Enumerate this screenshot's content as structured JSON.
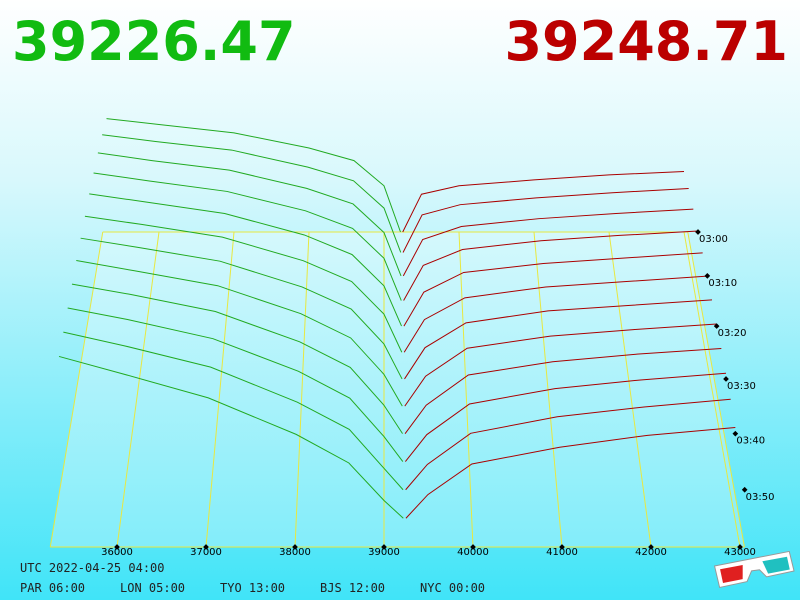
{
  "chart_data": {
    "type": "depth3d",
    "bid": 39226.47,
    "ask": 39248.71,
    "bid_color": "#11bb11",
    "ask_color": "#bb0000",
    "bid_line_color": "#22aa22",
    "ask_line_color": "#aa0000",
    "grid_color": "#e8e840",
    "xlim": [
      35250,
      43050
    ],
    "xticks": [
      36000,
      37000,
      38000,
      39000,
      40000,
      41000,
      42000,
      43000
    ],
    "tlim": [
      0,
      60
    ],
    "tticks": [
      {
        "value": 0,
        "label": "03:00"
      },
      {
        "value": 10,
        "label": "03:10"
      },
      {
        "value": 20,
        "label": "03:20"
      },
      {
        "value": 30,
        "label": "03:30"
      },
      {
        "value": 40,
        "label": "03:40"
      },
      {
        "value": 50,
        "label": "03:50"
      }
    ],
    "zlim": [
      0,
      200
    ],
    "bid_prices": [
      35300,
      36000,
      37000,
      38000,
      38600,
      39000,
      39220
    ],
    "ask_prices": [
      39250,
      39500,
      40000,
      41000,
      42000,
      43000
    ],
    "snapshots": [
      {
        "t": 0,
        "bids": [
          135,
          128,
          118,
          100,
          85,
          55,
          0
        ],
        "asks": [
          0,
          45,
          55,
          62,
          68,
          72
        ]
      },
      {
        "t": 5,
        "bids": [
          138,
          130,
          120,
          100,
          84,
          52,
          0
        ],
        "asks": [
          0,
          44,
          56,
          64,
          70,
          75
        ]
      },
      {
        "t": 10,
        "bids": [
          142,
          133,
          122,
          101,
          83,
          50,
          0
        ],
        "asks": [
          0,
          42,
          57,
          66,
          72,
          77
        ]
      },
      {
        "t": 15,
        "bids": [
          145,
          136,
          124,
          102,
          82,
          48,
          0
        ],
        "asks": [
          0,
          40,
          58,
          68,
          74,
          79
        ]
      },
      {
        "t": 20,
        "bids": [
          148,
          139,
          126,
          102,
          80,
          45,
          0
        ],
        "asks": [
          0,
          38,
          60,
          70,
          76,
          82
        ]
      },
      {
        "t": 25,
        "bids": [
          150,
          141,
          127,
          101,
          78,
          42,
          0
        ],
        "asks": [
          0,
          36,
          60,
          72,
          78,
          84
        ]
      },
      {
        "t": 30,
        "bids": [
          153,
          143,
          128,
          100,
          76,
          38,
          0
        ],
        "asks": [
          0,
          34,
          61,
          74,
          80,
          86
        ]
      },
      {
        "t": 35,
        "bids": [
          156,
          145,
          129,
          99,
          73,
          34,
          0
        ],
        "asks": [
          0,
          32,
          62,
          75,
          82,
          88
        ]
      },
      {
        "t": 40,
        "bids": [
          158,
          147,
          129,
          97,
          70,
          30,
          0
        ],
        "asks": [
          0,
          30,
          62,
          76,
          84,
          90
        ]
      },
      {
        "t": 45,
        "bids": [
          160,
          148,
          128,
          94,
          66,
          26,
          0
        ],
        "asks": [
          0,
          28,
          60,
          76,
          85,
          92
        ]
      },
      {
        "t": 50,
        "bids": [
          162,
          148,
          126,
          90,
          62,
          22,
          0
        ],
        "asks": [
          0,
          26,
          58,
          75,
          85,
          93
        ]
      },
      {
        "t": 55,
        "bids": [
          164,
          147,
          122,
          85,
          56,
          18,
          0
        ],
        "asks": [
          0,
          24,
          55,
          72,
          84,
          92
        ]
      }
    ],
    "utc_label": "UTC 2022-04-25 04:00",
    "clocks": [
      "PAR 06:00",
      "LON 05:00",
      "TYO 13:00",
      "BJS 12:00",
      "NYC 00:00"
    ]
  }
}
